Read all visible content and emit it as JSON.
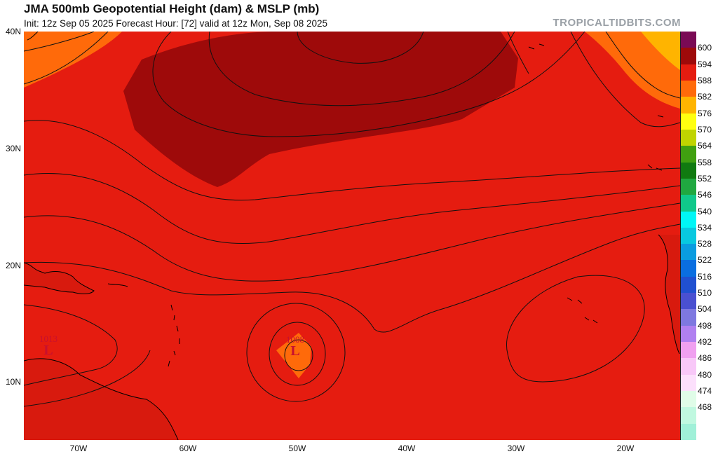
{
  "header": {
    "title": "JMA 500mb Geopotential Height (dam) & MSLP (mb)",
    "subtitle": "Init: 12z Sep 05 2025   Forecast Hour: [72]   valid at 12z Mon, Sep 08 2025",
    "brand": "TROPICALTIDBITS.COM"
  },
  "axes": {
    "lat_labels": [
      "40N",
      "30N",
      "20N",
      "10N"
    ],
    "lon_labels": [
      "70W",
      "60W",
      "50W",
      "40W",
      "30W",
      "20W"
    ]
  },
  "pressure_centers": [
    {
      "symbol": "L",
      "value": "1013"
    },
    {
      "symbol": "L",
      "value": "1008"
    }
  ],
  "colorbar": {
    "labels": [
      "600",
      "594",
      "588",
      "582",
      "576",
      "570",
      "564",
      "558",
      "552",
      "546",
      "540",
      "534",
      "528",
      "522",
      "516",
      "510",
      "504",
      "498",
      "492",
      "486",
      "480",
      "474",
      "468"
    ],
    "colors": [
      "#7a0a55",
      "#9e0a0a",
      "#e51c10",
      "#ff6a0a",
      "#ffb400",
      "#ffff10",
      "#c0d400",
      "#40a010",
      "#107a10",
      "#20a840",
      "#10c88a",
      "#00f6f6",
      "#08c8e0",
      "#0a9ce0",
      "#0a6ee0",
      "#2050d0",
      "#4a50d0",
      "#7e78e0",
      "#b080f0",
      "#f0a0f0",
      "#f8c8f8",
      "#fce0fc",
      "#e0fce8",
      "#c0f8e0",
      "#a0f0d8"
    ]
  },
  "fill_colors": {
    "h594": "#9e0a0a",
    "h588": "#e51c10",
    "h582": "#ff6a0a",
    "h576": "#ffb400",
    "land": "#d81a0e"
  }
}
